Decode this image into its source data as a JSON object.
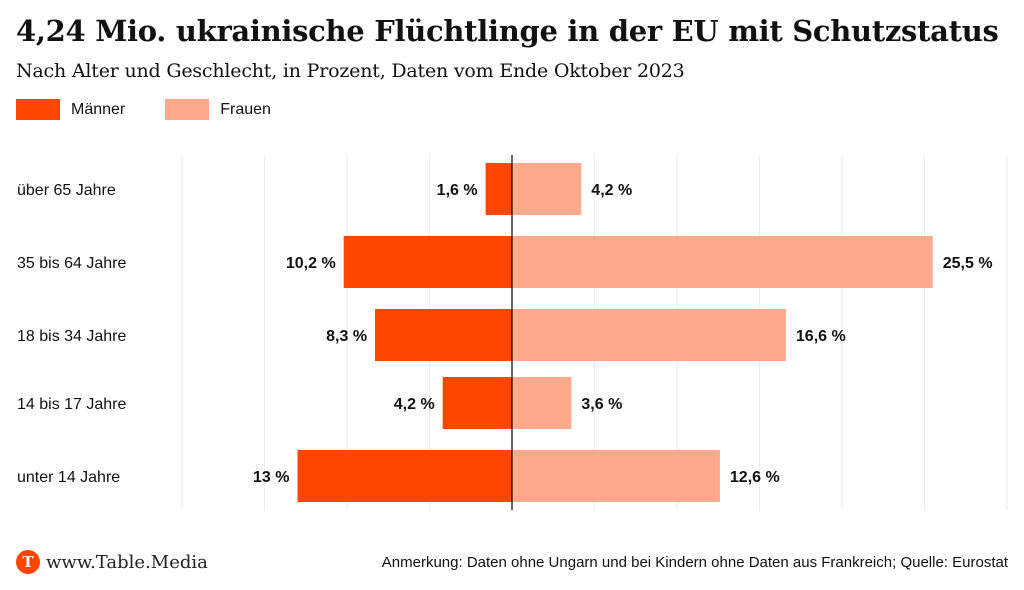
{
  "header": {
    "title": "4,24 Mio. ukrainische Flüchtlinge in der EU mit Schutzstatus",
    "subtitle": "Nach Alter und Geschlecht, in Prozent, Daten vom Ende Oktober 2023"
  },
  "legend": [
    {
      "label": "Männer",
      "color": "#ff4500"
    },
    {
      "label": "Frauen",
      "color": "#ffa98c"
    }
  ],
  "footer": {
    "logo_letter": "T",
    "site": "www.Table.Media",
    "note": "Anmerkung: Daten ohne Ungarn und bei Kindern ohne Daten aus Frankreich; Quelle: Eurostat"
  },
  "chart_data": {
    "type": "bar",
    "orientation": "horizontal-diverging",
    "title": "4,24 Mio. ukrainische Flüchtlinge in der EU mit Schutzstatus",
    "subtitle": "Nach Alter und Geschlecht, in Prozent, Daten vom Ende Oktober 2023",
    "categories": [
      "über 65 Jahre",
      "35 bis 64 Jahre",
      "18 bis 34 Jahre",
      "14 bis 17 Jahre",
      "unter 14 Jahre"
    ],
    "series": [
      {
        "name": "Männer",
        "color": "#ff4500",
        "side": "left",
        "values": [
          1.6,
          10.2,
          8.3,
          4.2,
          13
        ],
        "labels": [
          "1,6 %",
          "10,2 %",
          "8,3 %",
          "4,2 %",
          "13 %"
        ]
      },
      {
        "name": "Frauen",
        "color": "#ffa98c",
        "side": "right",
        "values": [
          4.2,
          25.5,
          16.6,
          3.6,
          12.6
        ],
        "labels": [
          "4,2 %",
          "25,5 %",
          "16,6 %",
          "3,6 %",
          "12,6 %"
        ]
      }
    ],
    "xlim": [
      -20,
      30
    ],
    "grid_step": 5,
    "grid": true,
    "legend_position": "top-left",
    "xlabel": "",
    "ylabel": ""
  }
}
